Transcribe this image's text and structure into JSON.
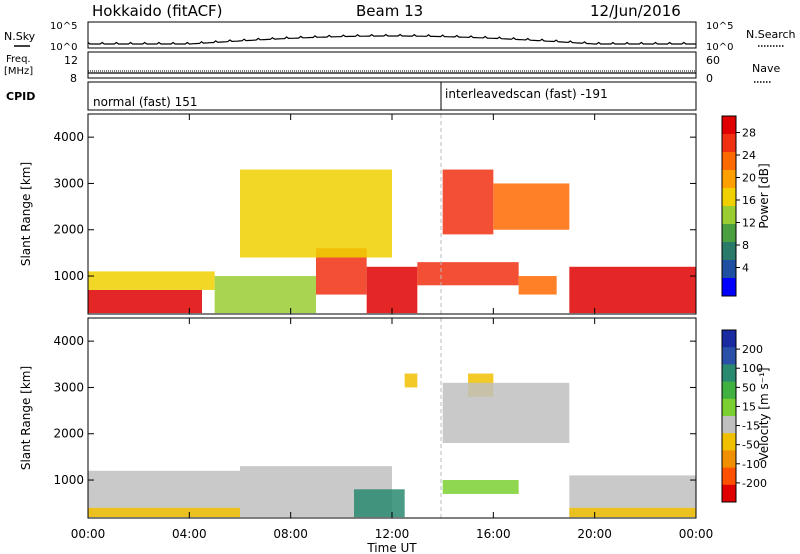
{
  "header": {
    "station": "Hokkaido (fitACF)",
    "beam": "Beam 13",
    "date": "12/Jun/2016"
  },
  "aux_panels": {
    "nsky_label": "N.Sky",
    "nsearch_label": "N.Search",
    "noise_ticks_left": [
      "10^5",
      "10^0"
    ],
    "noise_ticks_right": [
      "10^5",
      "10^0"
    ],
    "freq_label": "Freq.",
    "freq_unit": "[MHz]",
    "freq_ticks": [
      "12",
      "8"
    ],
    "nave_label": "Nave",
    "nave_ticks": [
      "60",
      "0"
    ],
    "cpid_label": "CPID",
    "cpid_segments": [
      {
        "name": "normal (fast) 151",
        "start_hour": 0,
        "end_hour": 14.0
      },
      {
        "name": "interleavedscan (fast) -191",
        "start_hour": 14.0,
        "end_hour": 24
      }
    ]
  },
  "axes": {
    "ylabel": "Slant Range [km]",
    "y_ticks": [
      1000,
      2000,
      3000,
      4000
    ],
    "x_ticks": [
      "00:00",
      "04:00",
      "08:00",
      "12:00",
      "16:00",
      "20:00",
      "00:00"
    ],
    "xlabel": "Time UT"
  },
  "colorbars": {
    "power": {
      "title": "Power [dB]",
      "tick_labels": [
        "28",
        "24",
        "20",
        "16",
        "12",
        "8",
        "4"
      ],
      "colors": [
        "#e00000",
        "#f03010",
        "#ff6a00",
        "#ffa000",
        "#f0d000",
        "#9acd32",
        "#4aa040",
        "#2a7a6a",
        "#1f4fa0",
        "#0000ff"
      ]
    },
    "velocity": {
      "title": "Velocity [m s⁻¹]",
      "tick_labels": [
        "200",
        "100",
        "50",
        "15",
        "-15",
        "-50",
        "-100",
        "-200"
      ],
      "colors": [
        "#1a2aa0",
        "#2a50a8",
        "#2a8a70",
        "#40b040",
        "#7ad030",
        "#c0c0c0",
        "#f0c000",
        "#f09000",
        "#ff5000",
        "#e00000"
      ]
    }
  },
  "chart_data": [
    {
      "type": "heatmap",
      "title": "Power [dB]",
      "xlabel": "Time UT",
      "ylabel": "Slant Range [km]",
      "x_unit": "hour UT",
      "xlim": [
        0,
        24
      ],
      "ylim": [
        180,
        4500
      ],
      "zlim": [
        0,
        30
      ],
      "regions": [
        {
          "t_start": 0,
          "t_end": 4.5,
          "r_low": 200,
          "r_high": 700,
          "value": 28
        },
        {
          "t_start": 0,
          "t_end": 5,
          "r_low": 700,
          "r_high": 1100,
          "value": 18
        },
        {
          "t_start": 5,
          "t_end": 9,
          "r_low": 200,
          "r_high": 1000,
          "value": 14
        },
        {
          "t_start": 9,
          "t_end": 11,
          "r_low": 600,
          "r_high": 1600,
          "value": 26
        },
        {
          "t_start": 11,
          "t_end": 13,
          "r_low": 200,
          "r_high": 1200,
          "value": 28
        },
        {
          "t_start": 13,
          "t_end": 17,
          "r_low": 800,
          "r_high": 1300,
          "value": 26
        },
        {
          "t_start": 14,
          "t_end": 16,
          "r_low": 1900,
          "r_high": 3300,
          "value": 26
        },
        {
          "t_start": 16,
          "t_end": 19,
          "r_low": 2000,
          "r_high": 3000,
          "value": 24
        },
        {
          "t_start": 17,
          "t_end": 18.5,
          "r_low": 600,
          "r_high": 1000,
          "value": 22
        },
        {
          "t_start": 19,
          "t_end": 24,
          "r_low": 200,
          "r_high": 1200,
          "value": 28
        },
        {
          "t_start": 6,
          "t_end": 12,
          "r_low": 1400,
          "r_high": 3300,
          "value": 16
        }
      ]
    },
    {
      "type": "heatmap",
      "title": "Velocity [m s⁻¹]",
      "xlabel": "Time UT",
      "ylabel": "Slant Range [km]",
      "x_unit": "hour UT",
      "xlim": [
        0,
        24
      ],
      "ylim": [
        180,
        4500
      ],
      "zlim": [
        -200,
        200
      ],
      "regions": [
        {
          "t_start": 0,
          "t_end": 6,
          "r_low": 200,
          "r_high": 1200,
          "value": 0
        },
        {
          "t_start": 0,
          "t_end": 6,
          "r_low": 200,
          "r_high": 400,
          "value": -50
        },
        {
          "t_start": 6,
          "t_end": 12,
          "r_low": 200,
          "r_high": 1300,
          "value": 0
        },
        {
          "t_start": 10.5,
          "t_end": 12.5,
          "r_low": 200,
          "r_high": 800,
          "value": 100
        },
        {
          "t_start": 14,
          "t_end": 17,
          "r_low": 700,
          "r_high": 1000,
          "value": 30
        },
        {
          "t_start": 12.5,
          "t_end": 13,
          "r_low": 3000,
          "r_high": 3300,
          "value": -50
        },
        {
          "t_start": 15,
          "t_end": 16,
          "r_low": 2800,
          "r_high": 3300,
          "value": -50
        },
        {
          "t_start": 14,
          "t_end": 19,
          "r_low": 1800,
          "r_high": 3100,
          "value": 0
        },
        {
          "t_start": 19,
          "t_end": 24,
          "r_low": 200,
          "r_high": 1100,
          "value": 0
        },
        {
          "t_start": 19,
          "t_end": 24,
          "r_low": 200,
          "r_high": 400,
          "value": -50
        }
      ]
    }
  ]
}
